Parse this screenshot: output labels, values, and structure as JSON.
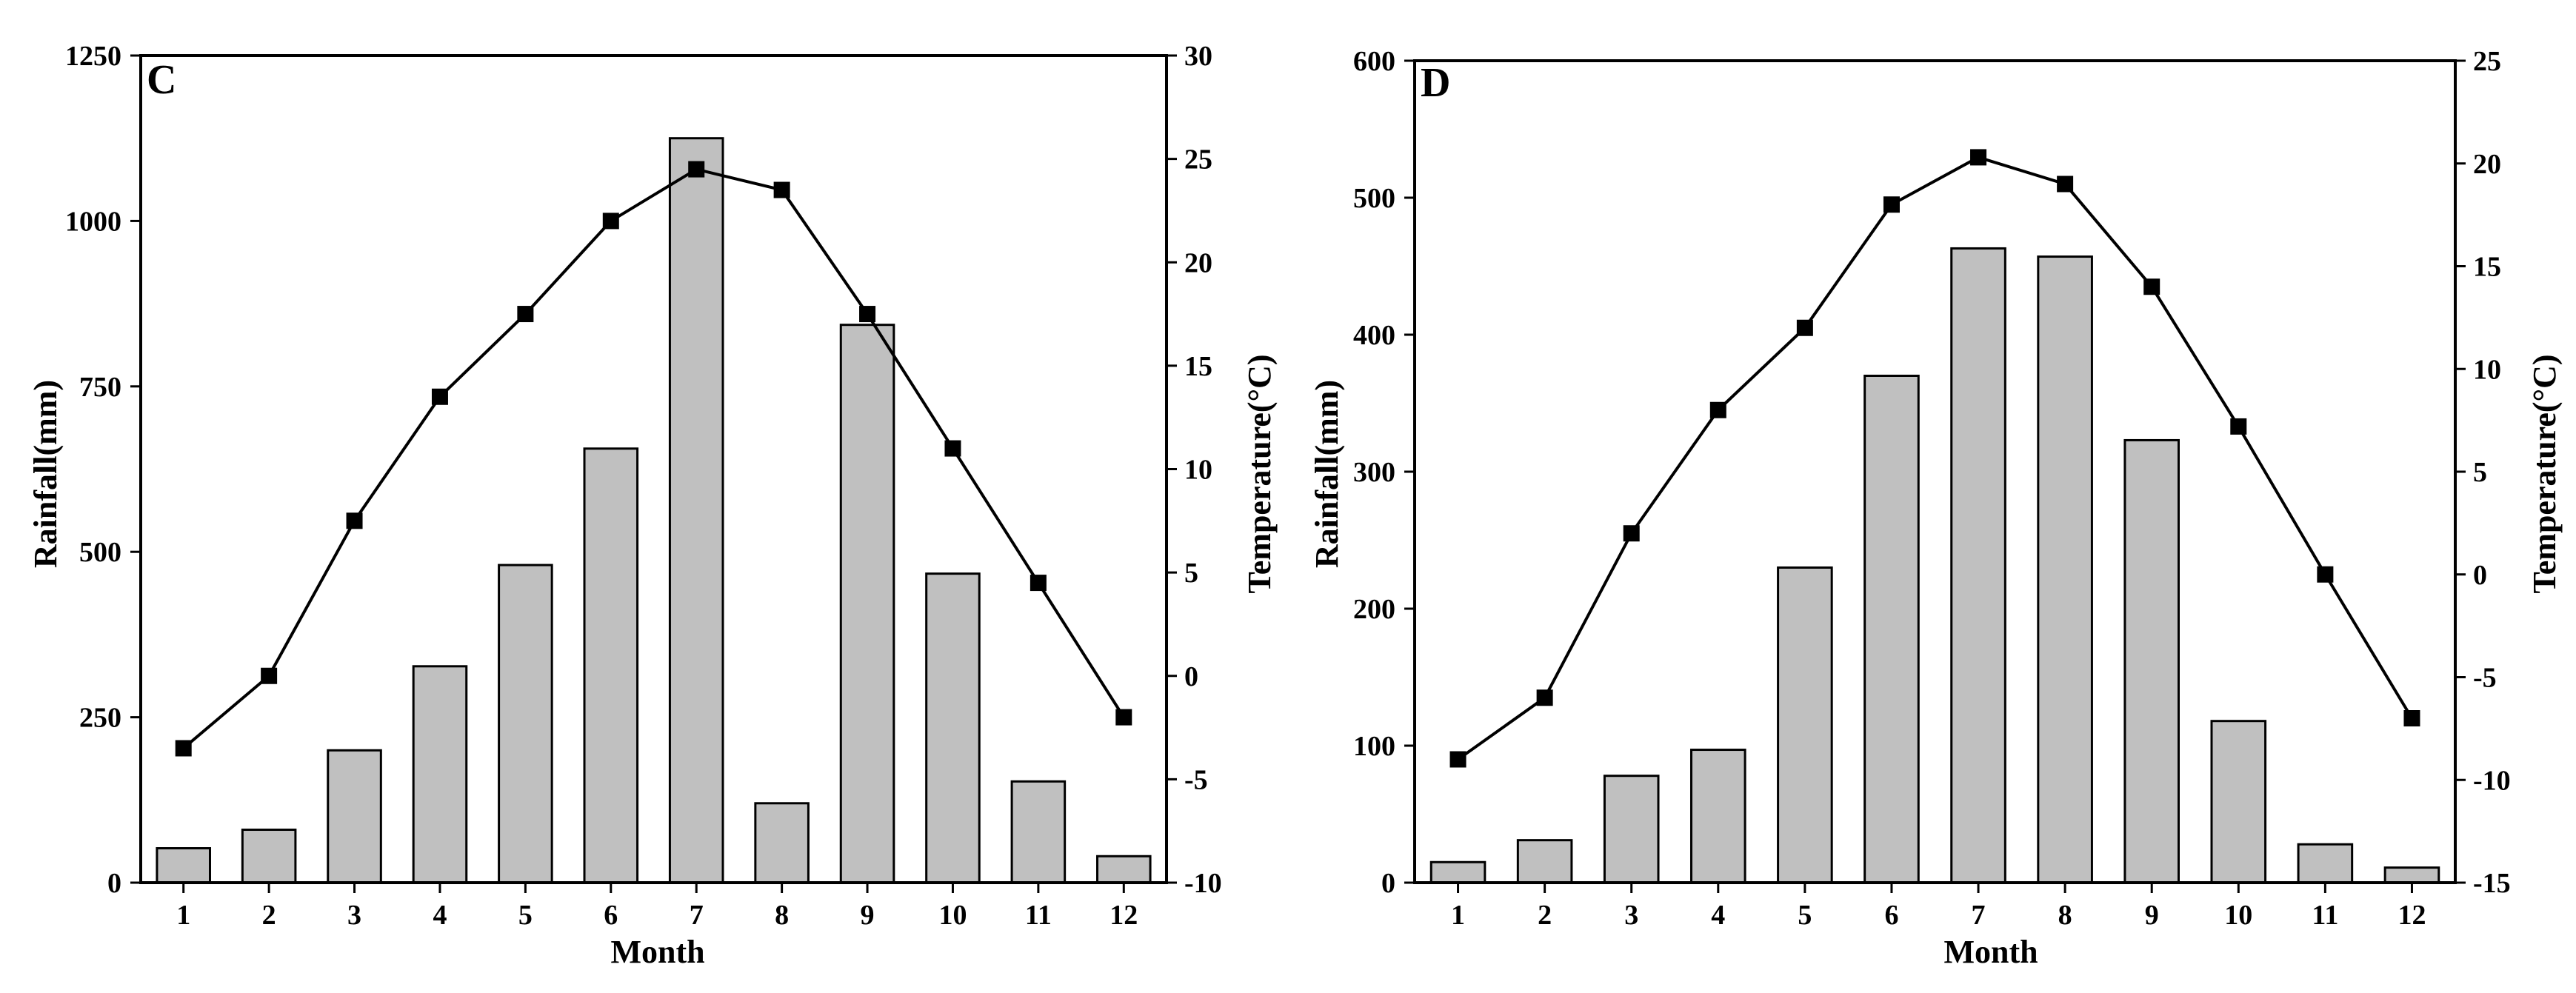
{
  "chart_data": [
    {
      "panel_label": "C",
      "type": "bar+line",
      "xlabel": "Month",
      "ylabel_left": "Rainfall(mm)",
      "ylabel_right": "Temperature(°C)",
      "categories": [
        "1",
        "2",
        "3",
        "4",
        "5",
        "6",
        "7",
        "8",
        "9",
        "10",
        "11",
        "12"
      ],
      "ylim_left": [
        0,
        1250
      ],
      "yticks_left": [
        "0",
        "250",
        "500",
        "750",
        "1000",
        "1250"
      ],
      "ylim_right": [
        -10,
        30
      ],
      "yticks_right": [
        "-10",
        "-5",
        "0",
        "5",
        "10",
        "15",
        "20",
        "25",
        "30"
      ],
      "series": [
        {
          "name": "Rainfall",
          "kind": "bar",
          "axis": "left",
          "values": [
            52,
            80,
            200,
            327,
            480,
            656,
            1125,
            120,
            843,
            467,
            153,
            40
          ]
        },
        {
          "name": "Temperature",
          "kind": "line",
          "axis": "right",
          "values": [
            -3.5,
            0,
            7.5,
            13.5,
            17.5,
            22,
            24.5,
            23.5,
            17.5,
            11,
            4.5,
            -2
          ]
        }
      ]
    },
    {
      "panel_label": "D",
      "type": "bar+line",
      "xlabel": "Month",
      "ylabel_left": "Rainfall(mm)",
      "ylabel_right": "Temperature(°C)",
      "categories": [
        "1",
        "2",
        "3",
        "4",
        "5",
        "6",
        "7",
        "8",
        "9",
        "10",
        "11",
        "12"
      ],
      "ylim_left": [
        0,
        600
      ],
      "yticks_left": [
        "0",
        "100",
        "200",
        "300",
        "400",
        "500",
        "600"
      ],
      "ylim_right": [
        -15,
        25
      ],
      "yticks_right": [
        "-15",
        "-10",
        "-5",
        "0",
        "5",
        "10",
        "15",
        "20",
        "25"
      ],
      "series": [
        {
          "name": "Rainfall",
          "kind": "bar",
          "axis": "left",
          "values": [
            15,
            31,
            78,
            97,
            230,
            370,
            463,
            457,
            323,
            118,
            28,
            11
          ]
        },
        {
          "name": "Temperature",
          "kind": "line",
          "axis": "right",
          "values": [
            -9,
            -6,
            2,
            8,
            12,
            18,
            20.3,
            19,
            14,
            7.2,
            0,
            -7
          ]
        }
      ]
    }
  ],
  "colors": {
    "bar_fill": "#c0c0c0",
    "stroke": "#000000",
    "background": "#ffffff"
  }
}
